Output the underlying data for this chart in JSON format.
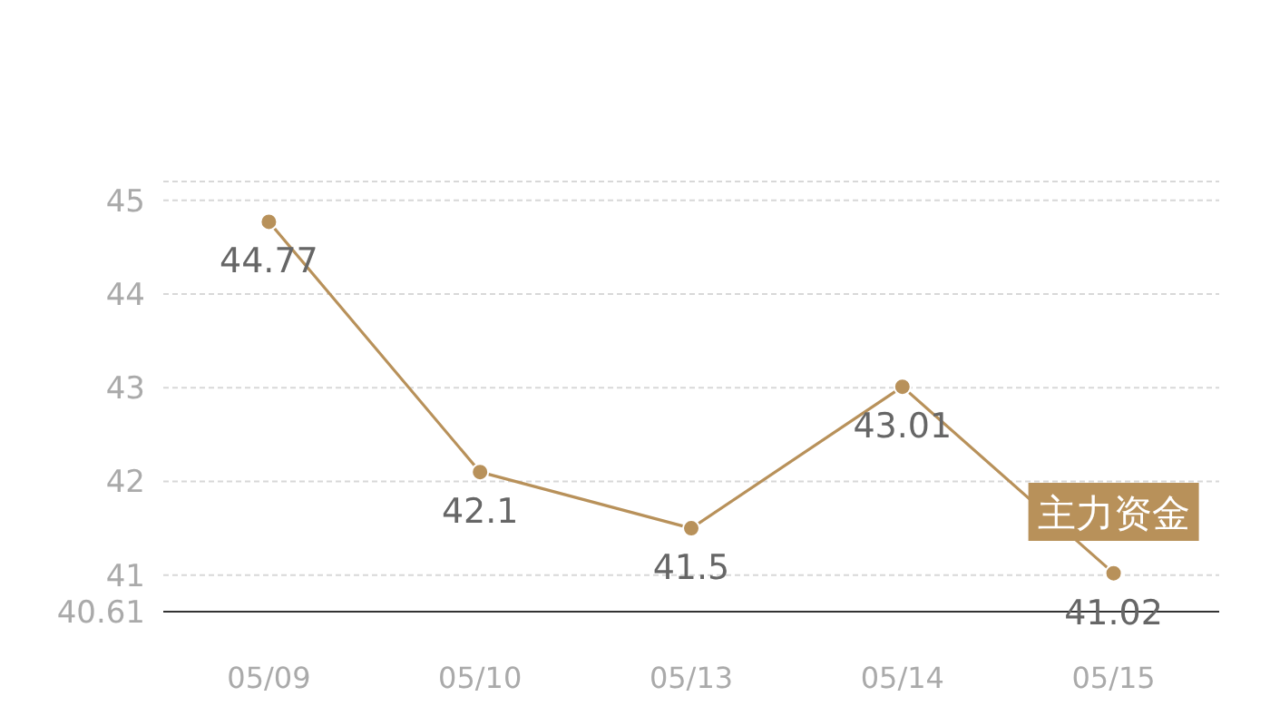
{
  "chart_data": {
    "type": "line",
    "categories": [
      "05/09",
      "05/10",
      "05/13",
      "05/14",
      "05/15"
    ],
    "series": [
      {
        "color": "#b8915a",
        "values": [
          44.77,
          42.1,
          41.5,
          43.01,
          41.02
        ]
      }
    ],
    "ylim": [
      40.61,
      45.2
    ],
    "yticks": [
      40.61,
      41,
      42,
      43,
      44,
      45,
      {
        "value": 45.2,
        "label": null
      }
    ],
    "grid": "y",
    "marker": "circle",
    "data_labels": true,
    "annotations": [
      "主力资金"
    ]
  }
}
